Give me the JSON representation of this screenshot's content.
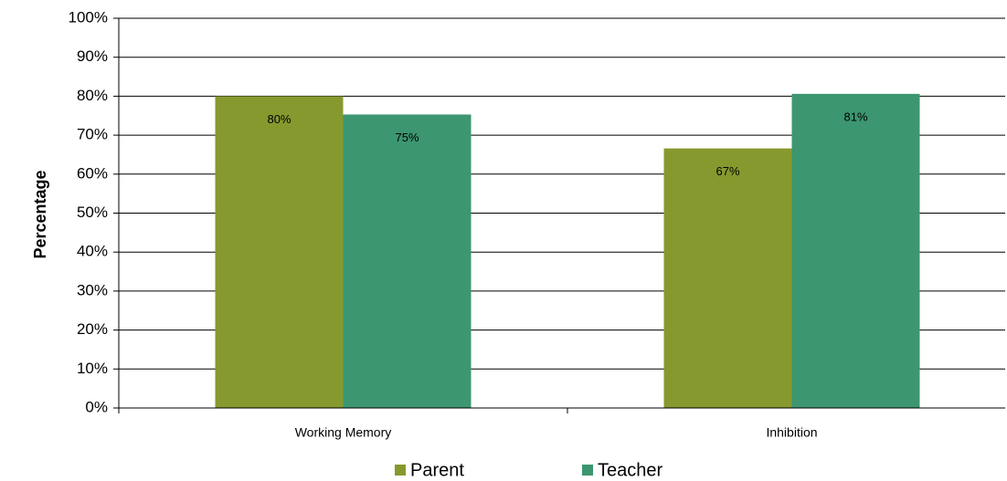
{
  "chart_data": {
    "type": "bar",
    "y_label": "Percentage",
    "categories": [
      "Working Memory",
      "Inhibition"
    ],
    "series": [
      {
        "name": "Parent",
        "color": "#86992e",
        "values": [
          80,
          66.6
        ],
        "value_labels": [
          "80%",
          "67%"
        ]
      },
      {
        "name": "Teacher",
        "color": "#3c9670",
        "values": [
          75.3,
          80.6
        ],
        "value_labels": [
          "75%",
          "81%"
        ]
      }
    ],
    "ylim": [
      0,
      100
    ],
    "yticks": [
      {
        "value": 0,
        "label": "0%"
      },
      {
        "value": 10,
        "label": "10%"
      },
      {
        "value": 20,
        "label": "20%"
      },
      {
        "value": 30,
        "label": "30%"
      },
      {
        "value": 40,
        "label": "40%"
      },
      {
        "value": 50,
        "label": "50%"
      },
      {
        "value": 60,
        "label": "60%"
      },
      {
        "value": 70,
        "label": "70%"
      },
      {
        "value": 80,
        "label": "80%"
      },
      {
        "value": 90,
        "label": "90%"
      },
      {
        "value": 100,
        "label": "100%"
      }
    ],
    "grid": true,
    "legend": "bottom"
  }
}
